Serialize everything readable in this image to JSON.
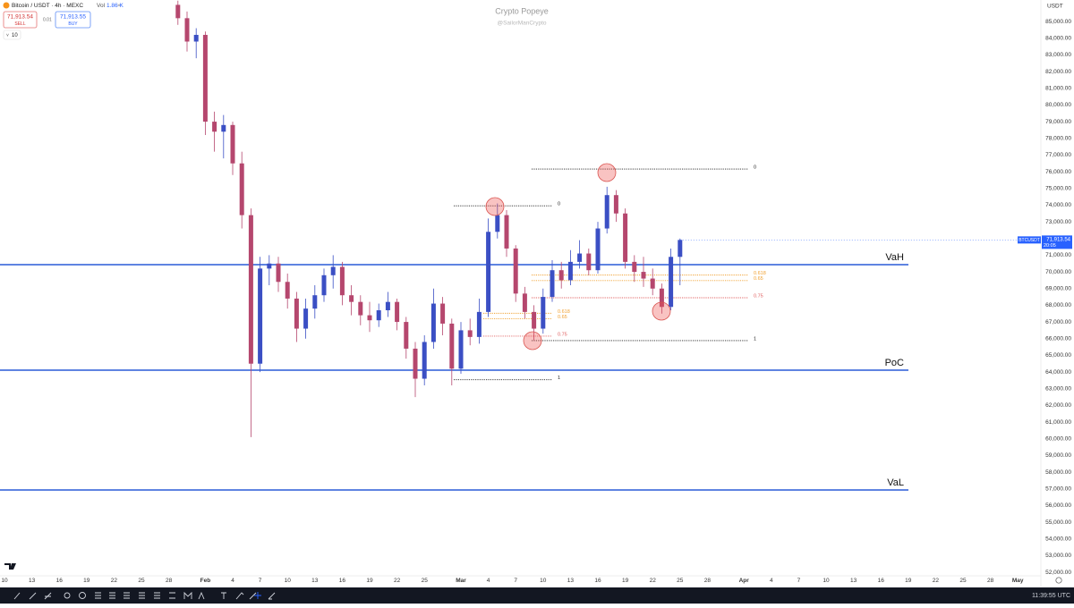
{
  "header": {
    "symbol": "Bitcoin / USDT · 4h · MEXC",
    "vol_label": "Vol",
    "vol": "1.86 K",
    "sell_price": "71,913.54",
    "sell": "SELL",
    "spread": "0.01",
    "buy_price": "71,913.55",
    "buy": "BUY",
    "qty": "10"
  },
  "watermark": {
    "title": "Crypto Popeye",
    "handle": "@SailorManCrypto"
  },
  "currency": "USDT",
  "price_tag": {
    "symbol": "BTCUSDT",
    "price": "71,913.54",
    "countdown": "20:05"
  },
  "status": {
    "clock": "11:39:55 UTC"
  },
  "chart_data": {
    "type": "candlestick",
    "up_color": "#3b4fc4",
    "down_color": "#b5476e",
    "categories": [
      "10",
      null,
      null,
      "13",
      null,
      null,
      "16",
      null,
      null,
      "19",
      null,
      null,
      "22",
      null,
      null,
      "25",
      null,
      null,
      "28",
      null,
      null,
      null,
      "Feb",
      null,
      null,
      "4",
      null,
      null,
      "7",
      null,
      null,
      "10",
      null,
      null,
      "13",
      null,
      null,
      "16",
      null,
      null,
      "19",
      null,
      null,
      "22",
      null,
      null,
      "25",
      null,
      null,
      null,
      "Mar",
      null,
      null,
      "4",
      null,
      null,
      "7",
      null,
      null,
      "10",
      null,
      null,
      "13",
      null,
      null,
      "16",
      null,
      null,
      "19",
      null,
      null,
      "22",
      null,
      null,
      "25",
      null,
      null,
      "28",
      null,
      null,
      null,
      "Apr",
      null,
      null,
      "4",
      null,
      null,
      "7",
      null,
      null,
      "10",
      null,
      null,
      "13",
      null,
      null,
      "16",
      null,
      null,
      "19",
      null,
      null,
      "22",
      null,
      null,
      "25",
      null,
      null,
      "28",
      null,
      null,
      "May"
    ],
    "open": [
      null,
      null,
      null,
      null,
      null,
      null,
      null,
      null,
      null,
      null,
      null,
      null,
      null,
      null,
      null,
      null,
      null,
      null,
      null,
      86000,
      85200,
      83800,
      84200,
      79000,
      78400,
      78800,
      76500,
      73400,
      64500,
      70200,
      70500,
      69400,
      68400,
      66600,
      67800,
      68600,
      69800,
      70300,
      68600,
      68200,
      67400,
      67100,
      67700,
      68200,
      67000,
      65400,
      63600,
      65800,
      68100,
      66900,
      64200,
      66500,
      66100,
      67600,
      72400,
      73400,
      71400,
      68700,
      67600,
      66600,
      68500,
      70100,
      69500,
      70600,
      71100,
      70100,
      72600,
      74600,
      73500,
      70600,
      70000,
      69600,
      69000,
      67900,
      70900,
      null,
      null,
      null,
      null,
      null,
      null,
      null,
      null,
      null,
      null,
      null,
      null,
      null,
      null,
      null,
      null,
      null,
      null,
      null,
      null,
      null,
      null,
      null,
      null,
      null,
      null,
      null,
      null,
      null,
      null,
      null,
      null,
      null,
      null,
      null,
      null,
      null
    ],
    "high": [
      null,
      null,
      null,
      null,
      null,
      null,
      null,
      null,
      null,
      null,
      null,
      null,
      null,
      null,
      null,
      null,
      null,
      null,
      null,
      86250,
      85600,
      84600,
      84400,
      79600,
      79400,
      79000,
      77200,
      73800,
      70900,
      71000,
      70900,
      69900,
      68800,
      68400,
      69200,
      70200,
      71000,
      70600,
      69200,
      68600,
      68200,
      68100,
      68800,
      68400,
      67300,
      65800,
      66200,
      69000,
      68500,
      67200,
      67000,
      67200,
      68400,
      73200,
      74100,
      73700,
      71600,
      69100,
      68000,
      69000,
      70700,
      70600,
      71300,
      71900,
      71400,
      73000,
      75100,
      74900,
      73800,
      71000,
      70900,
      70200,
      69300,
      71400,
      72000,
      null,
      null,
      null,
      null,
      null,
      null,
      null,
      null,
      null,
      null,
      null,
      null,
      null,
      null,
      null,
      null,
      null,
      null,
      null,
      null,
      null,
      null,
      null,
      null,
      null,
      null,
      null,
      null,
      null,
      null,
      null,
      null,
      null,
      null,
      null,
      null,
      null
    ],
    "low": [
      null,
      null,
      null,
      null,
      null,
      null,
      null,
      null,
      null,
      null,
      null,
      null,
      null,
      null,
      null,
      null,
      null,
      null,
      null,
      84800,
      83200,
      82800,
      78200,
      77200,
      76800,
      75800,
      72600,
      60100,
      64000,
      69200,
      68800,
      67800,
      65800,
      66000,
      67200,
      68200,
      69000,
      68000,
      67400,
      66800,
      66400,
      66700,
      67300,
      66500,
      64800,
      62500,
      63200,
      65400,
      66200,
      63200,
      63900,
      65600,
      65700,
      67300,
      72000,
      70900,
      68200,
      67200,
      65900,
      66300,
      68200,
      69000,
      69200,
      70200,
      69800,
      69900,
      72300,
      73000,
      70200,
      69400,
      69100,
      68600,
      67500,
      67700,
      69200,
      null,
      null,
      null,
      null,
      null,
      null,
      null,
      null,
      null,
      null,
      null,
      null,
      null,
      null,
      null,
      null,
      null,
      null,
      null,
      null,
      null,
      null,
      null,
      null,
      null,
      null,
      null,
      null,
      null,
      null,
      null,
      null,
      null,
      null,
      null,
      null,
      null
    ],
    "close": [
      null,
      null,
      null,
      null,
      null,
      null,
      null,
      null,
      null,
      null,
      null,
      null,
      null,
      null,
      null,
      null,
      null,
      null,
      null,
      85200,
      83800,
      84200,
      79000,
      78400,
      78800,
      76500,
      73400,
      64500,
      70200,
      70500,
      69400,
      68400,
      66600,
      67800,
      68600,
      69800,
      70300,
      68600,
      68200,
      67400,
      67100,
      67700,
      68200,
      67000,
      65400,
      63600,
      65800,
      68100,
      66900,
      64200,
      66500,
      66100,
      67600,
      72400,
      73400,
      71400,
      68700,
      67600,
      66600,
      68500,
      70100,
      69500,
      70600,
      71100,
      70100,
      72600,
      74600,
      73500,
      70600,
      70000,
      69600,
      69000,
      67900,
      70900,
      71913.54,
      null,
      null,
      null,
      null,
      null,
      null,
      null,
      null,
      null,
      null,
      null,
      null,
      null,
      null,
      null,
      null,
      null,
      null,
      null,
      null,
      null,
      null,
      null,
      null,
      null,
      null,
      null,
      null,
      null,
      null,
      null,
      null,
      null,
      null,
      null,
      null,
      null
    ],
    "ylim": [
      51200,
      86290
    ],
    "yticks": [
      {
        "value": 52000,
        "label": "52,000.00"
      },
      {
        "value": 53000,
        "label": "53,000.00"
      },
      {
        "value": 54000,
        "label": "54,000.00"
      },
      {
        "value": 55000,
        "label": "55,000.00"
      },
      {
        "value": 56000,
        "label": "56,000.00"
      },
      {
        "value": 57000,
        "label": "57,000.00"
      },
      {
        "value": 58000,
        "label": "58,000.00"
      },
      {
        "value": 59000,
        "label": "59,000.00"
      },
      {
        "value": 60000,
        "label": "60,000.00"
      },
      {
        "value": 61000,
        "label": "61,000.00"
      },
      {
        "value": 62000,
        "label": "62,000.00"
      },
      {
        "value": 63000,
        "label": "63,000.00"
      },
      {
        "value": 64000,
        "label": "64,000.00"
      },
      {
        "value": 65000,
        "label": "65,000.00"
      },
      {
        "value": 66000,
        "label": "66,000.00"
      },
      {
        "value": 67000,
        "label": "67,000.00"
      },
      {
        "value": 68000,
        "label": "68,000.00"
      },
      {
        "value": 69000,
        "label": "69,000.00"
      },
      {
        "value": 70000,
        "label": "70,000.00"
      },
      {
        "value": 71000,
        "label": "71,000.00"
      },
      {
        "value": 72000,
        "label": "72,000.00"
      },
      {
        "value": 73000,
        "label": "73,000.00"
      },
      {
        "value": 74000,
        "label": "74,000.00"
      },
      {
        "value": 75000,
        "label": "75,000.00"
      },
      {
        "value": 76000,
        "label": "76,000.00"
      },
      {
        "value": 77000,
        "label": "77,000.00"
      },
      {
        "value": 78000,
        "label": "78,000.00"
      },
      {
        "value": 79000,
        "label": "79,000.00"
      },
      {
        "value": 80000,
        "label": "80,000.00"
      },
      {
        "value": 81000,
        "label": "81,000.00"
      },
      {
        "value": 82000,
        "label": "82,000.00"
      },
      {
        "value": 83000,
        "label": "83,000.00"
      },
      {
        "value": 84000,
        "label": "84,000.00"
      },
      {
        "value": 85000,
        "label": "85,000.00"
      }
    ],
    "grid": false,
    "levels": [
      {
        "label": "VaH",
        "value": 70430,
        "color": "#2a5bd7"
      },
      {
        "label": "PoC",
        "value": 64110,
        "color": "#2a5bd7"
      },
      {
        "label": "VaL",
        "value": 56930,
        "color": "#2a5bd7"
      }
    ],
    "fibs": [
      {
        "levels": [
          {
            "label": "0",
            "value": 73960,
            "color": "#222222"
          },
          {
            "label": "0.618",
            "value": 67520,
            "color": "#f0a030"
          },
          {
            "label": "0.65",
            "value": 67190,
            "color": "#f0a030"
          },
          {
            "label": "0.75",
            "value": 66150,
            "color": "#e06060"
          },
          {
            "label": "1",
            "value": 63540,
            "color": "#222222"
          }
        ]
      },
      {
        "levels": [
          {
            "label": "0",
            "value": 76160,
            "color": "#222222"
          },
          {
            "label": "0.618",
            "value": 69810,
            "color": "#f0a030"
          },
          {
            "label": "0.65",
            "value": 69480,
            "color": "#f0a030"
          },
          {
            "label": "0.75",
            "value": 68450,
            "color": "#e06060"
          },
          {
            "label": "1",
            "value": 65880,
            "color": "#222222"
          }
        ]
      }
    ]
  }
}
